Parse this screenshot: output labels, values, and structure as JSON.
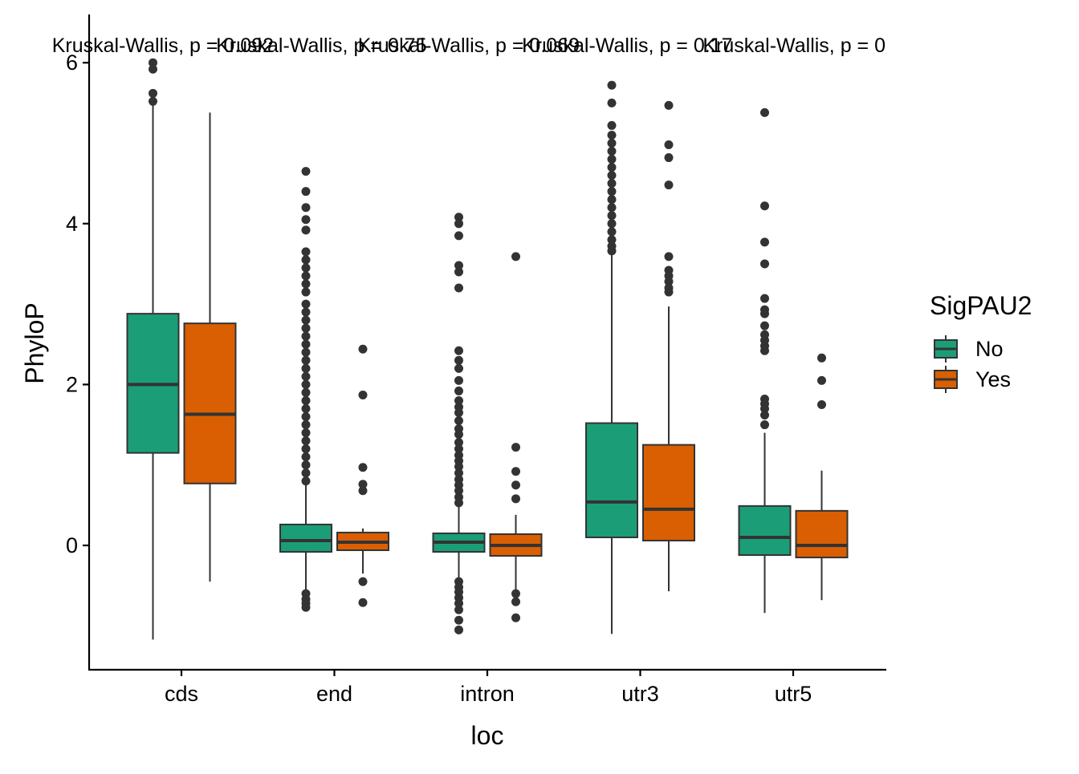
{
  "chart_data": {
    "type": "boxplot",
    "xlabel": "loc",
    "ylabel": "PhyloP",
    "categories": [
      "cds",
      "end",
      "intron",
      "utr3",
      "utr5"
    ],
    "ylim": [
      -1.55,
      6.6
    ],
    "yticks": [
      0,
      2,
      4,
      6
    ],
    "grid": false,
    "legend": {
      "title": "SigPAU2",
      "position": "right",
      "entries": [
        {
          "label": "No",
          "color": "#1B9E77"
        },
        {
          "label": "Yes",
          "color": "#D95F02"
        }
      ]
    },
    "annotations": [
      "Kruskal-Wallis, p = 0.092",
      "Kruskal-Wallis, p = 0.75",
      "Kruskal-Wallis, p = 0.069",
      "Kruskal-Wallis, p = 0.17",
      "Kruskal-Wallis, p = 0"
    ],
    "series": [
      {
        "name": "No",
        "color": "#1B9E77",
        "boxes": [
          {
            "q1": 1.15,
            "median": 2.0,
            "q3": 2.88,
            "whisker_low": -1.17,
            "whisker_high": 5.5,
            "outliers": [
              6.0,
              5.92,
              5.62,
              5.52
            ]
          },
          {
            "q1": -0.08,
            "median": 0.06,
            "q3": 0.26,
            "whisker_low": -0.55,
            "whisker_high": 0.75,
            "outliers": [
              4.65,
              4.4,
              4.2,
              4.05,
              3.92,
              3.65,
              3.55,
              3.45,
              3.35,
              3.25,
              3.15,
              3.0,
              2.9,
              2.8,
              2.7,
              2.6,
              2.5,
              2.4,
              2.3,
              2.2,
              2.1,
              2.0,
              1.9,
              1.8,
              1.7,
              1.6,
              1.5,
              1.4,
              1.3,
              1.2,
              1.1,
              1.0,
              0.9,
              0.8,
              -0.6,
              -0.67,
              -0.72,
              -0.77
            ]
          },
          {
            "q1": -0.08,
            "median": 0.04,
            "q3": 0.15,
            "whisker_low": -0.4,
            "whisker_high": 0.48,
            "outliers": [
              4.08,
              4.0,
              3.85,
              3.48,
              3.4,
              3.2,
              2.42,
              2.3,
              2.2,
              2.05,
              1.92,
              1.8,
              1.72,
              1.65,
              1.55,
              1.45,
              1.38,
              1.28,
              1.2,
              1.12,
              1.05,
              0.98,
              0.9,
              0.82,
              0.75,
              0.68,
              0.6,
              0.53,
              -0.45,
              -0.52,
              -0.58,
              -0.65,
              -0.72,
              -0.8,
              -0.93,
              -1.05
            ]
          },
          {
            "q1": 0.1,
            "median": 0.54,
            "q3": 1.52,
            "whisker_low": -1.1,
            "whisker_high": 3.62,
            "outliers": [
              5.72,
              5.5,
              5.22,
              5.1,
              5.0,
              4.9,
              4.8,
              4.7,
              4.6,
              4.5,
              4.4,
              4.3,
              4.2,
              4.1,
              4.0,
              3.9,
              3.8,
              3.72,
              3.66
            ]
          },
          {
            "q1": -0.12,
            "median": 0.1,
            "q3": 0.49,
            "whisker_low": -0.84,
            "whisker_high": 1.4,
            "outliers": [
              5.38,
              4.22,
              3.77,
              3.5,
              3.07,
              2.93,
              2.88,
              2.73,
              2.62,
              2.55,
              2.48,
              2.42,
              1.82,
              1.76,
              1.7,
              1.62,
              1.5
            ]
          }
        ]
      },
      {
        "name": "Yes",
        "color": "#D95F02",
        "boxes": [
          {
            "q1": 0.77,
            "median": 1.63,
            "q3": 2.76,
            "whisker_low": -0.45,
            "whisker_high": 5.38,
            "outliers": []
          },
          {
            "q1": -0.06,
            "median": 0.04,
            "q3": 0.16,
            "whisker_low": -0.35,
            "whisker_high": 0.21,
            "outliers": [
              2.44,
              1.87,
              0.97,
              0.76,
              0.68,
              -0.45,
              -0.71
            ]
          },
          {
            "q1": -0.13,
            "median": 0.0,
            "q3": 0.14,
            "whisker_low": -0.55,
            "whisker_high": 0.38,
            "outliers": [
              3.59,
              1.22,
              0.92,
              0.75,
              0.58,
              -0.6,
              -0.7,
              -0.9
            ]
          },
          {
            "q1": 0.06,
            "median": 0.45,
            "q3": 1.25,
            "whisker_low": -0.57,
            "whisker_high": 2.97,
            "outliers": [
              5.47,
              4.98,
              4.82,
              4.48,
              3.59,
              3.42,
              3.35,
              3.28,
              3.2,
              3.15
            ]
          },
          {
            "q1": -0.15,
            "median": 0.0,
            "q3": 0.43,
            "whisker_low": -0.68,
            "whisker_high": 0.93,
            "outliers": [
              2.33,
              2.05,
              1.75
            ]
          }
        ]
      }
    ]
  }
}
